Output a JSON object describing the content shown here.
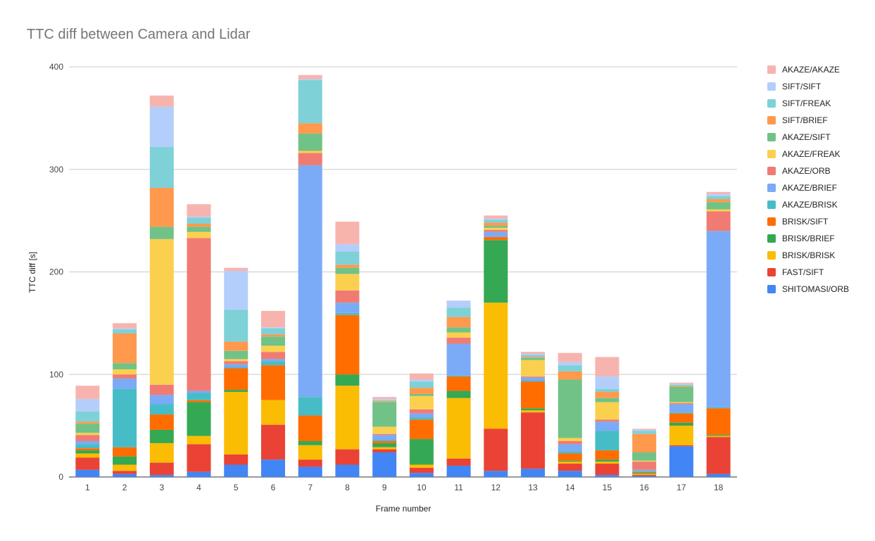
{
  "chart_data": {
    "type": "bar",
    "stacked": true,
    "title": "TTC diff between Camera and Lidar",
    "xlabel": "Frame number",
    "ylabel": "TTC diff [s]",
    "ylim": [
      0,
      400
    ],
    "yticks": [
      0,
      100,
      200,
      300,
      400
    ],
    "grid": true,
    "legend_position": "right",
    "categories": [
      "1",
      "2",
      "3",
      "4",
      "5",
      "6",
      "7",
      "8",
      "9",
      "10",
      "11",
      "12",
      "13",
      "14",
      "15",
      "16",
      "17",
      "18"
    ],
    "series": [
      {
        "name": "SHITOMASI/ORB",
        "color": "#4285f4",
        "values": [
          7,
          3,
          2,
          5,
          12,
          17,
          10,
          12,
          24,
          4,
          11,
          6,
          8,
          6,
          2,
          1,
          30,
          3
        ]
      },
      {
        "name": "FAST/SIFT",
        "color": "#ea4335",
        "values": [
          12,
          3,
          12,
          27,
          10,
          34,
          7,
          15,
          3,
          5,
          7,
          41,
          55,
          7,
          11,
          1,
          1,
          36
        ]
      },
      {
        "name": "BRISK/BRISK",
        "color": "#fbbc04",
        "values": [
          4,
          6,
          19,
          8,
          61,
          24,
          14,
          62,
          2,
          3,
          59,
          123,
          2,
          2,
          2,
          1,
          19,
          1
        ]
      },
      {
        "name": "BRISK/BRIEF",
        "color": "#34a853",
        "values": [
          3,
          8,
          13,
          33,
          2,
          0,
          4,
          11,
          4,
          25,
          7,
          61,
          2,
          1,
          2,
          1,
          3,
          1
        ]
      },
      {
        "name": "BRISK/SIFT",
        "color": "#ff6d01",
        "values": [
          2,
          9,
          15,
          2,
          21,
          34,
          25,
          58,
          2,
          19,
          14,
          3,
          26,
          7,
          9,
          1,
          9,
          26
        ]
      },
      {
        "name": "AKAZE/BRISK",
        "color": "#46bdc6",
        "values": [
          4,
          57,
          10,
          7,
          1,
          4,
          18,
          2,
          1,
          2,
          1,
          0,
          1,
          2,
          19,
          1,
          1,
          1
        ]
      },
      {
        "name": "AKAZE/BRIEF",
        "color": "#7baaf7",
        "values": [
          3,
          10,
          9,
          2,
          3,
          2,
          226,
          10,
          5,
          4,
          31,
          5,
          3,
          7,
          9,
          1,
          8,
          172
        ]
      },
      {
        "name": "AKAZE/ORB",
        "color": "#f07b72",
        "values": [
          6,
          4,
          10,
          149,
          3,
          7,
          12,
          12,
          1,
          4,
          6,
          2,
          1,
          3,
          2,
          8,
          1,
          19
        ]
      },
      {
        "name": "AKAZE/FREAK",
        "color": "#fcd04f",
        "values": [
          2,
          5,
          142,
          6,
          2,
          6,
          2,
          16,
          7,
          13,
          5,
          2,
          16,
          3,
          17,
          1,
          1,
          2
        ]
      },
      {
        "name": "AKAZE/SIFT",
        "color": "#71c287",
        "values": [
          9,
          6,
          12,
          5,
          8,
          9,
          17,
          6,
          24,
          2,
          5,
          2,
          2,
          57,
          4,
          8,
          15,
          7
        ]
      },
      {
        "name": "SIFT/BRIEF",
        "color": "#ff994d",
        "values": [
          2,
          29,
          38,
          3,
          9,
          2,
          10,
          3,
          1,
          6,
          10,
          3,
          1,
          8,
          6,
          18,
          1,
          3
        ]
      },
      {
        "name": "SIFT/FREAK",
        "color": "#7ed1d7",
        "values": [
          10,
          4,
          40,
          6,
          31,
          6,
          42,
          13,
          1,
          6,
          9,
          3,
          2,
          6,
          3,
          3,
          1,
          3
        ]
      },
      {
        "name": "SIFT/SIFT",
        "color": "#b3cefb",
        "values": [
          12,
          1,
          39,
          1,
          38,
          1,
          1,
          7,
          1,
          2,
          7,
          1,
          1,
          3,
          12,
          1,
          1,
          2
        ]
      },
      {
        "name": "AKAZE/AKAZE",
        "color": "#f7b4ae",
        "values": [
          13,
          5,
          11,
          12,
          3,
          16,
          4,
          22,
          2,
          6,
          0,
          3,
          2,
          9,
          19,
          1,
          1,
          2
        ]
      }
    ]
  }
}
